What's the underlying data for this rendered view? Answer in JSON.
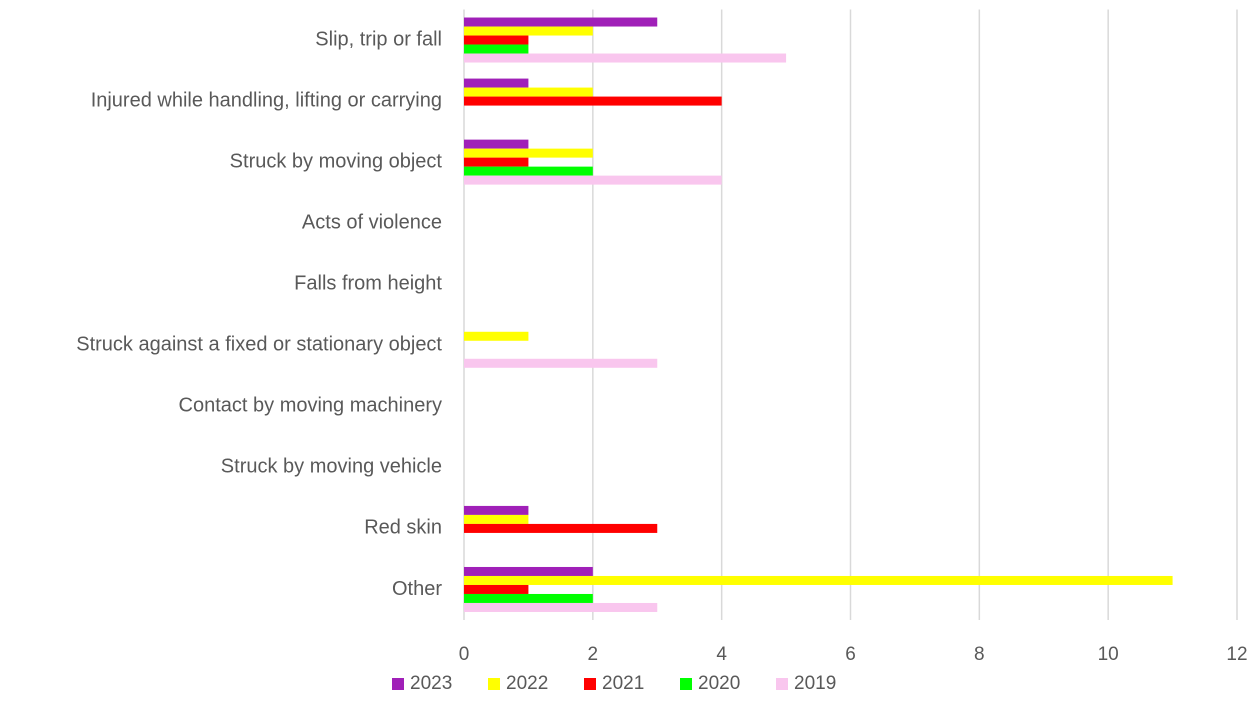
{
  "chart_data": {
    "type": "hbar",
    "categories": [
      "Slip, trip or fall",
      "Injured while handling, lifting or carrying",
      "Struck by moving object",
      "Acts of violence",
      "Falls from height",
      "Struck against a fixed or stationary object",
      "Contact by moving machinery",
      "Struck by moving vehicle",
      "Red skin",
      "Other"
    ],
    "series": [
      {
        "name": "2023",
        "color": "#a020b8",
        "values": [
          3,
          1,
          1,
          0,
          0,
          0,
          0,
          0,
          1,
          2
        ]
      },
      {
        "name": "2022",
        "color": "#ffff00",
        "values": [
          2,
          2,
          2,
          0,
          0,
          1,
          0,
          0,
          1,
          11
        ]
      },
      {
        "name": "2021",
        "color": "#ff0000",
        "values": [
          1,
          4,
          1,
          0,
          0,
          0,
          0,
          0,
          3,
          1
        ]
      },
      {
        "name": "2020",
        "color": "#00ff00",
        "values": [
          1,
          0,
          2,
          0,
          0,
          0,
          0,
          0,
          0,
          2
        ]
      },
      {
        "name": "2019",
        "color": "#f9c6ee",
        "values": [
          5,
          0,
          4,
          0,
          0,
          3,
          0,
          0,
          0,
          3
        ]
      }
    ],
    "xlim": [
      0,
      12
    ],
    "xticks": [
      0,
      2,
      4,
      6,
      8,
      10,
      12
    ],
    "grid": true,
    "legend": "bottom"
  }
}
